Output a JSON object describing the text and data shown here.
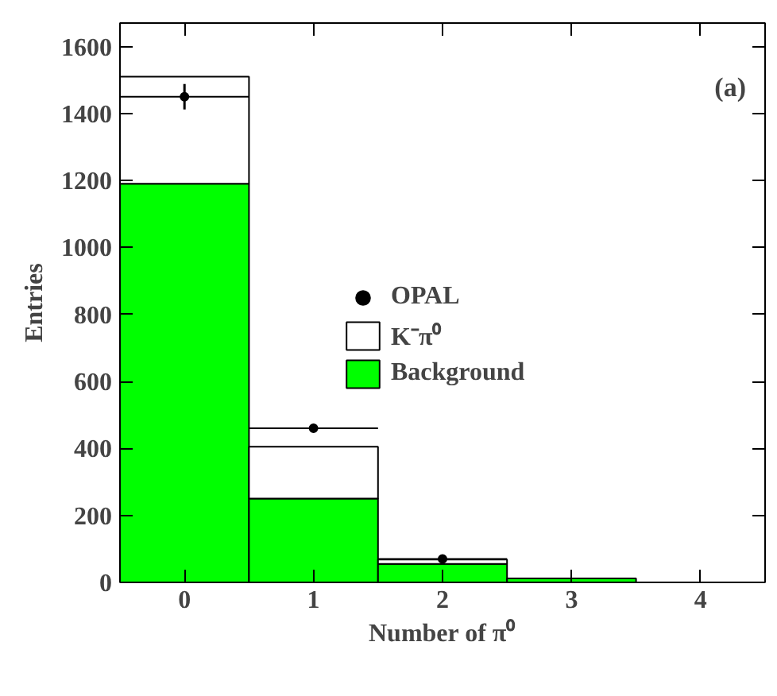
{
  "chart_data": {
    "type": "bar",
    "stacked": true,
    "xlabel": "Number of π⁰",
    "ylabel": "Entries",
    "x": [
      0,
      1,
      2,
      3
    ],
    "series": [
      {
        "name": "Background",
        "color": "#00ff00",
        "values": [
          1190,
          250,
          55,
          12
        ]
      },
      {
        "name": "K⁻π⁰",
        "color": "#ffffff",
        "values": [
          320,
          155,
          13,
          null
        ]
      },
      {
        "name": "OPAL",
        "type": "scatter",
        "color": "#000000",
        "x": [
          0,
          1,
          2
        ],
        "values": [
          1450,
          460,
          70
        ],
        "errors": [
          38,
          null,
          null
        ],
        "xerrors": [
          0.5,
          0.5,
          0.5
        ]
      }
    ],
    "xlim": [
      -0.5,
      4.5
    ],
    "xticks": [
      0,
      1,
      2,
      3,
      4
    ],
    "ylim": [
      0,
      1670
    ],
    "yticks": [
      0,
      200,
      400,
      600,
      800,
      1000,
      1200,
      1400,
      1600
    ],
    "annotations": [
      "(a)"
    ],
    "legend": "right",
    "grid": false,
    "marker": "circle"
  }
}
